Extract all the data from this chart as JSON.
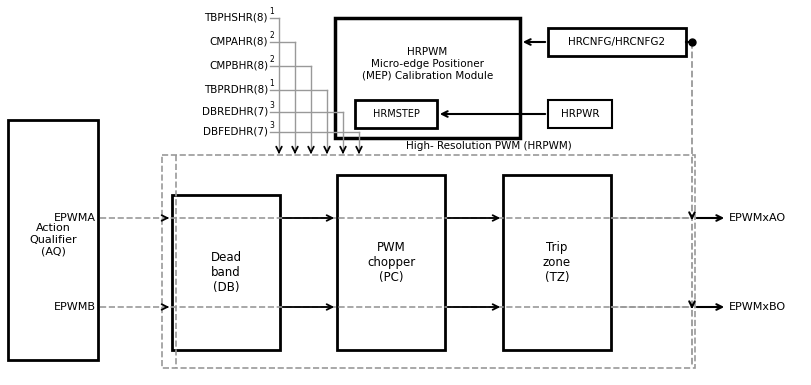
{
  "bg_color": "#ffffff",
  "black": "#000000",
  "gray": "#999999",
  "signals": [
    [
      "TBPHSHR(8)",
      "1"
    ],
    [
      "CMPAHR(8)",
      "2"
    ],
    [
      "CMPBHR(8)",
      "2"
    ],
    [
      "TBPRDHR(8)",
      "1"
    ],
    [
      "DBREDHR(7)",
      "3"
    ],
    [
      "DBFEDHR(7)",
      "3"
    ]
  ]
}
